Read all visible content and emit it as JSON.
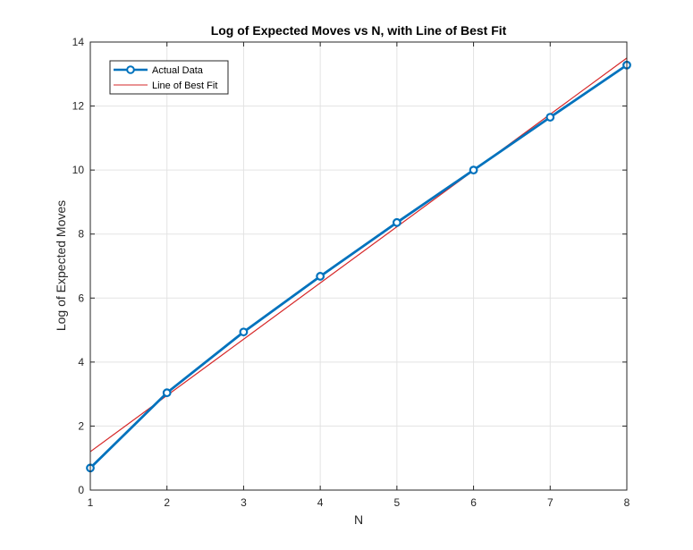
{
  "chart_data": {
    "type": "line",
    "title": "Log of Expected Moves vs N, with Line of Best Fit",
    "xlabel": "N",
    "ylabel": "Log of Expected Moves",
    "xlim": [
      1,
      8
    ],
    "ylim": [
      0,
      14
    ],
    "xticks": [
      1,
      2,
      3,
      4,
      5,
      6,
      7,
      8
    ],
    "yticks": [
      0,
      2,
      4,
      6,
      8,
      10,
      12,
      14
    ],
    "grid": true,
    "legend_position": "top-left",
    "series": [
      {
        "name": "Actual Data",
        "color": "#0072BD",
        "marker": "circle",
        "x": [
          1,
          2,
          3,
          4,
          5,
          6,
          7,
          8
        ],
        "values": [
          0.69,
          3.04,
          4.94,
          6.68,
          8.36,
          10.0,
          11.65,
          13.28
        ]
      },
      {
        "name": "Line of Best Fit",
        "color": "#D62728",
        "marker": "none",
        "x": [
          1,
          8
        ],
        "values": [
          1.2,
          13.5
        ]
      }
    ]
  }
}
